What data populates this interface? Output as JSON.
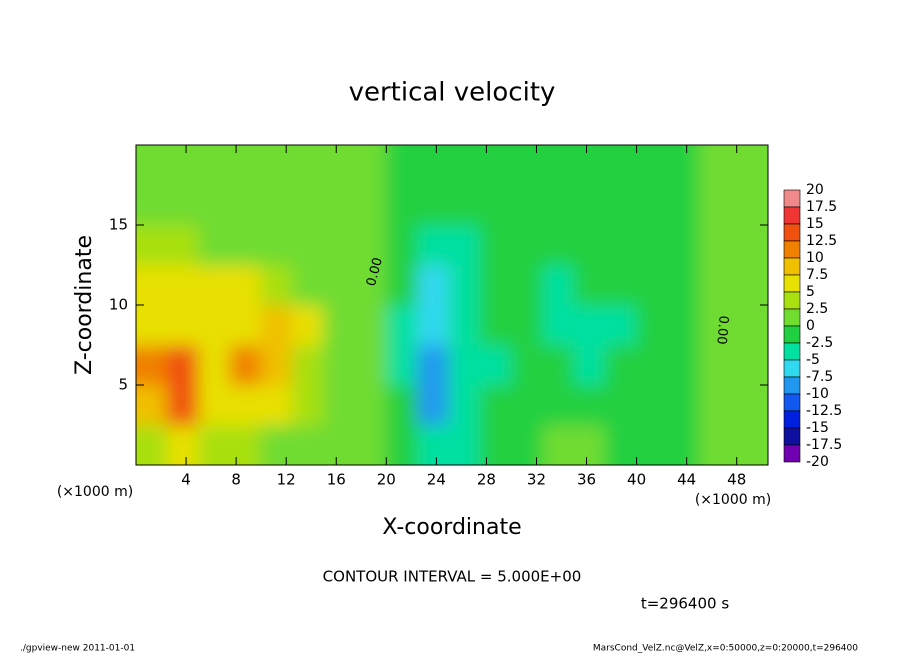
{
  "chart_data": {
    "type": "contour",
    "title": "vertical velocity",
    "xlabel": "X-coordinate",
    "ylabel": "Z-coordinate",
    "x_unit": "(×1000 m)",
    "x_unit_right": "(×1000 m)",
    "contour_interval": "CONTOUR INTERVAL = 5.000E+00",
    "time_label": "t=296400 s",
    "footer_left": "./gpview-new  2011-01-01",
    "footer_right": "MarsCond_VelZ.nc@VelZ,x=0:50000,z=0:20000,t=296400",
    "contour_labels": [
      "0.00",
      "0.00"
    ],
    "xlim": [
      0,
      50.5
    ],
    "ylim": [
      0,
      20
    ],
    "xticks": [
      4,
      8,
      12,
      16,
      20,
      24,
      28,
      32,
      36,
      40,
      44,
      48
    ],
    "yticks": [
      5,
      10,
      15
    ],
    "x": [
      1.25,
      3.75,
      6.25,
      8.75,
      11.25,
      13.75,
      16.25,
      18.75,
      21.25,
      23.75,
      26.25,
      28.75,
      31.25,
      33.75,
      36.25,
      38.75,
      41.25,
      43.75,
      46.25,
      48.75
    ],
    "y": [
      1.25,
      3.75,
      6.25,
      8.75,
      11.25,
      13.75,
      16.25,
      18.75
    ],
    "values": [
      [
        3,
        6,
        4,
        3,
        2,
        1.5,
        1,
        0.5,
        -1,
        -4,
        -3,
        -1,
        -1,
        0.5,
        1,
        -1,
        -1,
        -0.5,
        0.5,
        0.5
      ],
      [
        8,
        13,
        6,
        7,
        5,
        3,
        1.5,
        0.5,
        -2,
        -9,
        -4,
        -2,
        -1,
        -1,
        -1,
        -1,
        -1,
        -1,
        0.5,
        1
      ],
      [
        10,
        14,
        5,
        12,
        9,
        4,
        2,
        0,
        -3,
        -9,
        -4,
        -3,
        -2,
        -2,
        -3,
        -2,
        -1,
        -1,
        0.5,
        1
      ],
      [
        6,
        7,
        7,
        6,
        9,
        5,
        2,
        0,
        -3,
        -6,
        -4,
        -2,
        -2,
        -3,
        -4,
        -3,
        -2,
        -1,
        0.5,
        1
      ],
      [
        5,
        6,
        6,
        5,
        4,
        2,
        1,
        0,
        -2,
        -6,
        -5,
        -1,
        -2,
        -3,
        -2,
        -1,
        -1,
        -0.5,
        0.5,
        1
      ],
      [
        3,
        3,
        2,
        2,
        1.5,
        1,
        0.5,
        0,
        -1,
        -4,
        -3,
        -1,
        -1,
        -1,
        -1,
        -0.5,
        -0.5,
        -0.5,
        0.5,
        1
      ],
      [
        2,
        1.5,
        1,
        1,
        1,
        0.5,
        0.5,
        0,
        -1,
        -1.5,
        -1,
        -0.5,
        -0.5,
        -0.5,
        -0.5,
        -0.5,
        -0.5,
        -0.5,
        0.5,
        1
      ],
      [
        1.5,
        1,
        1,
        1,
        0.5,
        0.5,
        0.5,
        0,
        -0.5,
        -0.5,
        -0.5,
        -0.5,
        -0.5,
        -0.5,
        -0.5,
        -0.5,
        -0.5,
        -0.5,
        0.5,
        0.5
      ]
    ],
    "levels": [
      20,
      17.5,
      15,
      12.5,
      10,
      7.5,
      5,
      2.5,
      0,
      -2.5,
      -5,
      -7.5,
      -10,
      -12.5,
      -15,
      -17.5,
      -20
    ],
    "colors": [
      "#f08a8a",
      "#f03535",
      "#f05010",
      "#f08000",
      "#f0c000",
      "#e8e000",
      "#a8e010",
      "#70dc30",
      "#20d040",
      "#00e0a0",
      "#30d8f0",
      "#2098f0",
      "#1058f0",
      "#0020e0",
      "#1010a0",
      "#7000b0"
    ]
  }
}
